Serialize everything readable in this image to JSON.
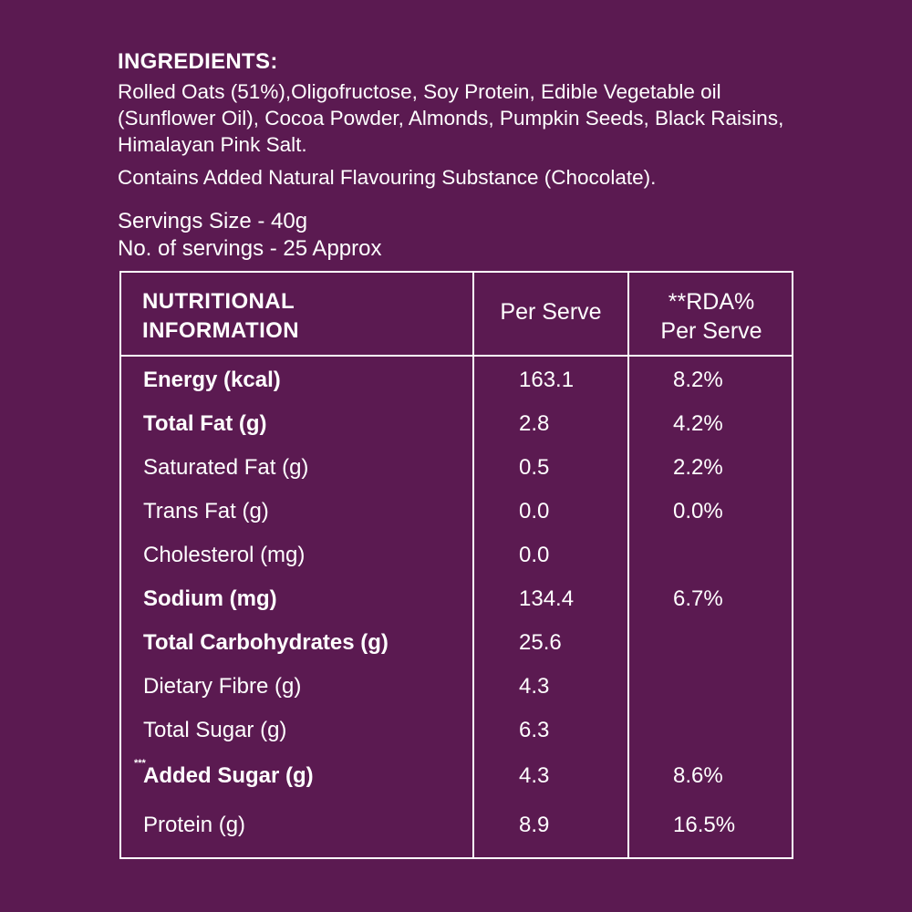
{
  "ingredients": {
    "title": "INGREDIENTS:",
    "text": "Rolled Oats (51%),Oligofructose, Soy Protein, Edible Vegetable oil (Sunflower Oil), Cocoa Powder, Almonds, Pumpkin Seeds, Black Raisins, Himalayan Pink Salt.",
    "flavour_note": "Contains Added Natural Flavouring Substance (Chocolate)."
  },
  "servings": {
    "size": "Servings Size - 40g",
    "count": "No. of servings - 25 Approx"
  },
  "table": {
    "header": {
      "col1_line1": "NUTRITIONAL",
      "col1_line2": "INFORMATION",
      "col2": "Per Serve",
      "col3_line1": "**RDA%",
      "col3_line2": "Per Serve"
    },
    "rows": [
      {
        "name": "Energy (kcal)",
        "per_serve": "163.1",
        "rda": "8.2%"
      },
      {
        "name": "Total Fat (g)",
        "per_serve": "2.8",
        "rda": "4.2%"
      },
      {
        "name": "Saturated Fat (g)",
        "per_serve": "0.5",
        "rda": "2.2%"
      },
      {
        "name": "Trans Fat (g)",
        "per_serve": "0.0",
        "rda": "0.0%"
      },
      {
        "name": "Cholesterol (mg)",
        "per_serve": "0.0",
        "rda": ""
      },
      {
        "name": "Sodium (mg)",
        "per_serve": "134.4",
        "rda": "6.7%"
      },
      {
        "name": "Total Carbohydrates (g)",
        "per_serve": "25.6",
        "rda": ""
      },
      {
        "name": "Dietary Fibre (g)",
        "per_serve": "4.3",
        "rda": ""
      },
      {
        "name": "Total Sugar (g)",
        "per_serve": "6.3",
        "rda": ""
      },
      {
        "name": "Added Sugar (g)",
        "prefix": "***",
        "per_serve": "4.3",
        "rda": "8.6%"
      },
      {
        "name": "Protein (g)",
        "per_serve": "8.9",
        "rda": "16.5%"
      }
    ]
  },
  "colors": {
    "background": "#5b1a51",
    "text": "#ffffff"
  }
}
